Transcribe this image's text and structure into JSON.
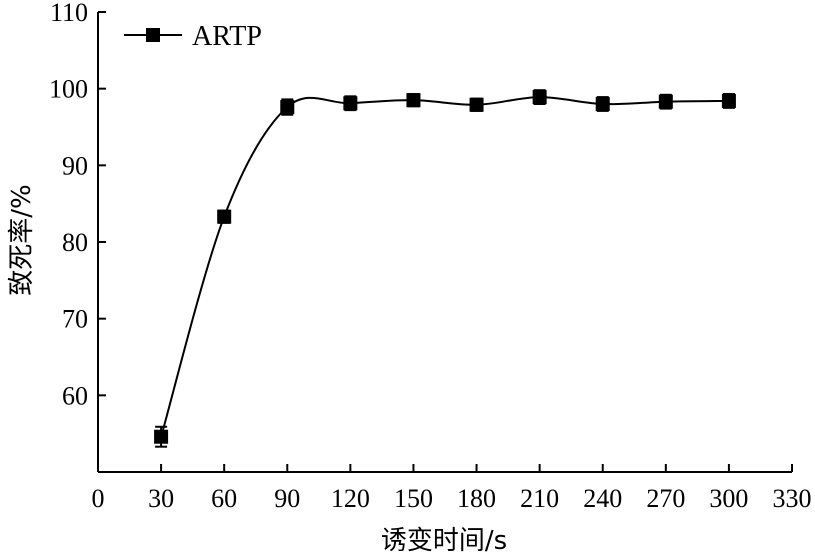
{
  "chart_data": {
    "type": "line",
    "title": "",
    "xlabel": "诱变时间/s",
    "ylabel": "致死率/%",
    "xlim": [
      0,
      330
    ],
    "ylim": [
      50,
      110
    ],
    "x_ticks": [
      0,
      30,
      60,
      90,
      120,
      150,
      180,
      210,
      240,
      270,
      300,
      330
    ],
    "y_ticks": [
      60,
      70,
      80,
      90,
      100,
      110
    ],
    "legend_position": "top-left",
    "grid": false,
    "colors": {
      "line": "#000000",
      "marker": "#000000",
      "axis": "#000000"
    },
    "series": [
      {
        "name": "ARTP",
        "marker": "square",
        "smooth": true,
        "x": [
          30,
          60,
          90,
          120,
          150,
          180,
          210,
          240,
          270,
          300
        ],
        "y": [
          54.6,
          83.3,
          97.6,
          98.1,
          98.5,
          97.9,
          98.9,
          98.0,
          98.3,
          98.4
        ],
        "error": [
          1.3,
          0.8,
          1.0,
          0.9,
          0.8,
          0.8,
          0.9,
          0.9,
          0.9,
          0.9
        ]
      }
    ]
  }
}
